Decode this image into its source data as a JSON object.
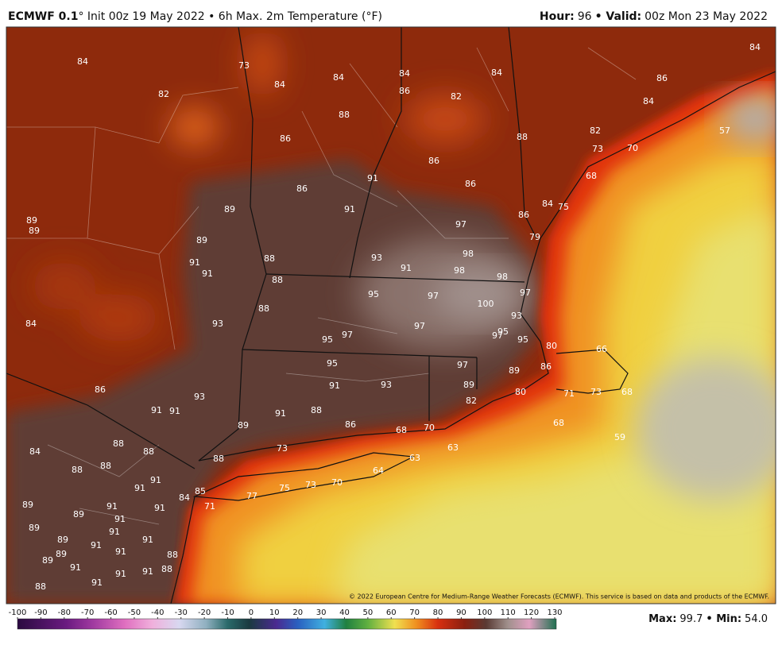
{
  "header": {
    "model": "ECMWF 0.1",
    "description": "° Init 00z 19 May 2022 • 6h Max. 2m Temperature (°F)",
    "hour_label": "Hour:",
    "hour": "96",
    "valid_label": "• Valid:",
    "valid": "00z Mon 23 May 2022"
  },
  "map_labels": [
    84,
    73,
    84,
    84,
    84,
    86,
    84,
    82,
    82,
    88,
    84,
    86,
    84,
    88,
    86,
    82,
    73,
    70,
    57,
    86,
    86,
    68,
    91,
    86,
    91,
    89,
    86,
    84,
    75,
    89,
    89,
    97,
    89,
    79,
    93,
    98,
    88,
    91,
    91,
    98,
    98,
    91,
    88,
    97,
    95,
    97,
    100,
    88,
    84,
    93,
    97,
    93,
    95,
    97,
    95,
    97,
    95,
    80,
    66,
    95,
    97,
    86,
    89,
    91,
    93,
    89,
    86,
    80,
    71,
    73,
    68,
    93,
    82,
    91,
    91,
    88,
    91,
    89,
    86,
    68,
    70,
    68,
    59,
    88,
    88,
    84,
    73,
    63,
    88,
    88,
    88,
    91,
    91,
    63,
    64,
    75,
    73,
    70,
    77,
    89,
    89,
    91,
    91,
    91,
    84,
    85,
    71,
    91,
    89,
    89,
    91,
    89,
    91,
    91,
    88,
    89,
    91,
    91,
    88,
    91,
    91,
    88
  ],
  "credit": "© 2022 European Centre for Medium-Range Weather Forecasts (ECMWF). This service is based on data and products of the ECMWF.",
  "colorbar": {
    "ticks": [
      -100,
      -90,
      -80,
      -70,
      -60,
      -50,
      -40,
      -30,
      -20,
      -10,
      0,
      10,
      20,
      30,
      40,
      50,
      60,
      70,
      80,
      90,
      100,
      110,
      120,
      130
    ]
  },
  "stats": {
    "max_label": "Max:",
    "max": "99.7",
    "min_label": "• Min:",
    "min": "54.0"
  }
}
